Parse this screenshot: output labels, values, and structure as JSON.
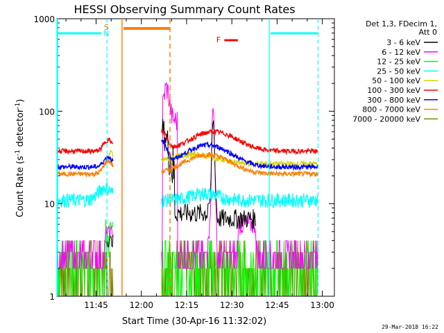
{
  "chart_data": {
    "type": "line",
    "title": "HESSI Observing Summary Count Rates",
    "xlabel": "Start Time (30-Apr-16 11:32:02)",
    "ylabel_main": "Count Rate (s",
    "ylabel_sup1": "-1",
    "ylabel_mid": " detector",
    "ylabel_sup2": "-1",
    "ylabel_end": ")",
    "y_scale": "log",
    "ylim": [
      1,
      1000
    ],
    "y_ticks": [
      "1",
      "10",
      "100",
      "1000"
    ],
    "x_range_minutes": [
      0,
      92
    ],
    "x_ticks": [
      "11:45",
      "12:00",
      "12:15",
      "12:30",
      "12:45",
      "13:00"
    ],
    "legend_placement": "right",
    "legend_title_line1": "Det 1,3, FDecim 1,",
    "legend_title_line2": "Att 0",
    "series": [
      {
        "name": "3 - 6 keV",
        "color": "#000000"
      },
      {
        "name": "6 - 12 keV",
        "color": "#ff00ff"
      },
      {
        "name": "12 - 25 keV",
        "color": "#00ff00"
      },
      {
        "name": "25 - 50 keV",
        "color": "#00ffff"
      },
      {
        "name": "50 - 100 keV",
        "color": "#d4d400"
      },
      {
        "name": "100 - 300 keV",
        "color": "#ff0000"
      },
      {
        "name": "300 - 800 keV",
        "color": "#0000ff"
      },
      {
        "name": "800 - 7000 keV",
        "color": "#ff7f00"
      },
      {
        "name": "7000 - 20000 keV",
        "color": "#808000"
      }
    ],
    "flags": {
      "saa_label": "S",
      "night_label": "N",
      "flare_label": "F",
      "night_color": "#00ffff",
      "saa_color": "#ff7f00",
      "flare_color": "#ff0000"
    },
    "intervals": {
      "night": [
        [
          0,
          16.6
        ],
        [
          70.4,
          86.6
        ]
      ],
      "saa": [
        [
          21.6,
          37.5
        ]
      ],
      "flare": [
        [
          55.5,
          60
        ]
      ]
    }
  },
  "footer": {
    "date_stamp": "29-Mar-2018 16:22"
  }
}
